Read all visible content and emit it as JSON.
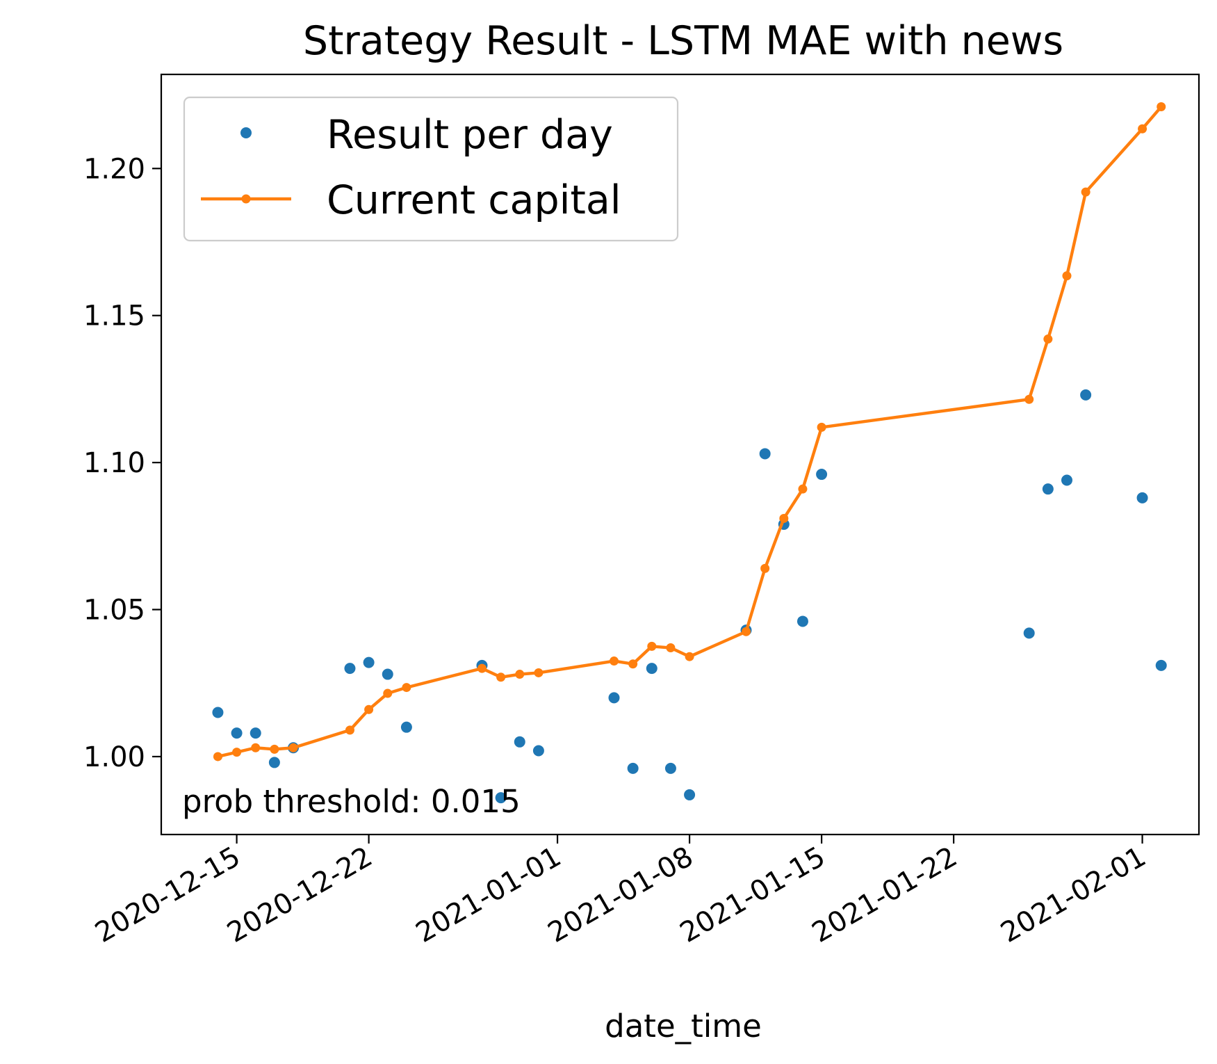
{
  "chart_data": {
    "type": "line",
    "title": "Strategy Result - LSTM MAE with news",
    "xlabel": "date_time",
    "ylabel": "",
    "x_type": "date",
    "xlim": [
      "2020-12-11",
      "2021-02-04"
    ],
    "ylim": [
      0.9735,
      1.232
    ],
    "x_ticks": [
      "2020-12-15",
      "2020-12-22",
      "2021-01-01",
      "2021-01-08",
      "2021-01-15",
      "2021-01-22",
      "2021-02-01"
    ],
    "y_ticks": [
      "1.00",
      "1.05",
      "1.10",
      "1.15",
      "1.20"
    ],
    "grid": false,
    "legend": {
      "position": "top-left",
      "entries": [
        "Result per day",
        "Current capital"
      ]
    },
    "annotation": "prob threshold: 0.015",
    "series": [
      {
        "name": "Result per day",
        "style": "markers",
        "color": "#1f77b4",
        "points": [
          [
            "2020-12-14",
            1.015
          ],
          [
            "2020-12-15",
            1.008
          ],
          [
            "2020-12-16",
            1.008
          ],
          [
            "2020-12-17",
            0.998
          ],
          [
            "2020-12-18",
            1.003
          ],
          [
            "2020-12-21",
            1.03
          ],
          [
            "2020-12-22",
            1.032
          ],
          [
            "2020-12-23",
            1.028
          ],
          [
            "2020-12-24",
            1.01
          ],
          [
            "2020-12-28",
            1.031
          ],
          [
            "2020-12-29",
            0.986
          ],
          [
            "2020-12-30",
            1.005
          ],
          [
            "2020-12-31",
            1.002
          ],
          [
            "2021-01-04",
            1.02
          ],
          [
            "2021-01-05",
            0.996
          ],
          [
            "2021-01-06",
            1.03
          ],
          [
            "2021-01-07",
            0.996
          ],
          [
            "2021-01-08",
            0.987
          ],
          [
            "2021-01-11",
            1.043
          ],
          [
            "2021-01-12",
            1.103
          ],
          [
            "2021-01-13",
            1.079
          ],
          [
            "2021-01-14",
            1.046
          ],
          [
            "2021-01-15",
            1.096
          ],
          [
            "2021-01-26",
            1.042
          ],
          [
            "2021-01-27",
            1.091
          ],
          [
            "2021-01-28",
            1.094
          ],
          [
            "2021-01-29",
            1.123
          ],
          [
            "2021-02-01",
            1.088
          ],
          [
            "2021-02-02",
            1.031
          ]
        ]
      },
      {
        "name": "Current capital",
        "style": "line-markers",
        "color": "#ff7f0e",
        "points": [
          [
            "2020-12-14",
            1.0
          ],
          [
            "2020-12-15",
            1.0015
          ],
          [
            "2020-12-16",
            1.003
          ],
          [
            "2020-12-17",
            1.0025
          ],
          [
            "2020-12-18",
            1.003
          ],
          [
            "2020-12-21",
            1.009
          ],
          [
            "2020-12-22",
            1.016
          ],
          [
            "2020-12-23",
            1.0215
          ],
          [
            "2020-12-24",
            1.0235
          ],
          [
            "2020-12-28",
            1.03
          ],
          [
            "2020-12-29",
            1.027
          ],
          [
            "2020-12-30",
            1.028
          ],
          [
            "2020-12-31",
            1.0285
          ],
          [
            "2021-01-04",
            1.0325
          ],
          [
            "2021-01-05",
            1.0315
          ],
          [
            "2021-01-06",
            1.0375
          ],
          [
            "2021-01-07",
            1.037
          ],
          [
            "2021-01-08",
            1.034
          ],
          [
            "2021-01-11",
            1.0425
          ],
          [
            "2021-01-12",
            1.064
          ],
          [
            "2021-01-13",
            1.081
          ],
          [
            "2021-01-14",
            1.091
          ],
          [
            "2021-01-15",
            1.112
          ],
          [
            "2021-01-26",
            1.1215
          ],
          [
            "2021-01-27",
            1.142
          ],
          [
            "2021-01-28",
            1.1635
          ],
          [
            "2021-01-29",
            1.192
          ],
          [
            "2021-02-01",
            1.2135
          ],
          [
            "2021-02-02",
            1.221
          ]
        ]
      }
    ]
  }
}
